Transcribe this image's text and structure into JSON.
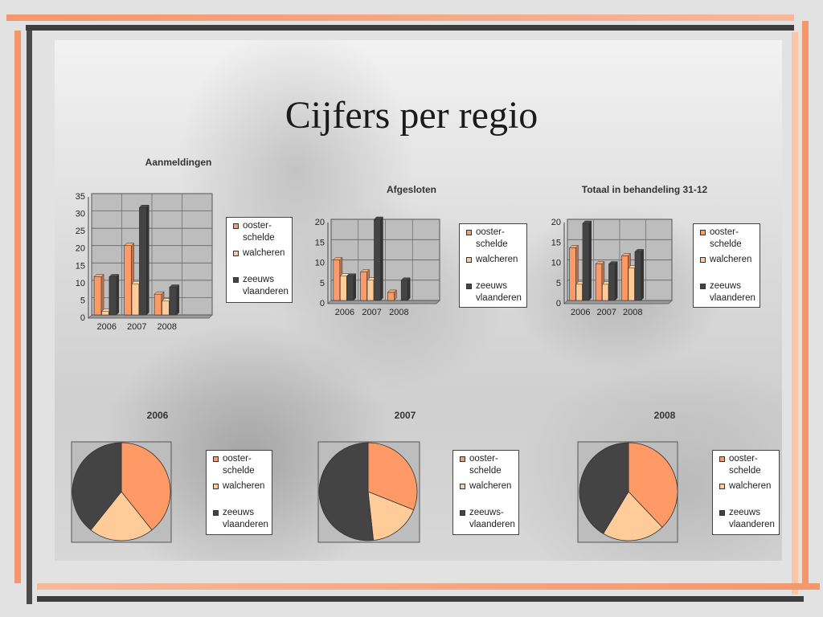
{
  "slide_title": "Cijfers per regio",
  "colors": {
    "oosterschelde": "#ff9966",
    "walcheren": "#ffcc99",
    "zeeuws_vlaanderen": "#444444",
    "plot_bg": "#bdbdbd",
    "accent_orange": "#f4976c"
  },
  "chart_data": [
    {
      "id": "aanmeldingen",
      "type": "bar",
      "title": "Aanmeldingen",
      "categories": [
        "2006",
        "2007",
        "2008"
      ],
      "ylim": [
        0,
        35
      ],
      "yticks": [
        "0",
        "5",
        "10",
        "15",
        "20",
        "25",
        "30",
        "35"
      ],
      "series": [
        {
          "name": "ooster-schelde",
          "values": [
            11,
            20,
            6
          ]
        },
        {
          "name": "walcheren",
          "values": [
            1,
            9,
            4
          ]
        },
        {
          "name": "zeeuws vlaanderen",
          "values": [
            11,
            31,
            8
          ]
        }
      ],
      "legend": [
        "ooster-",
        "schelde",
        "walcheren",
        "zeeuws",
        "vlaanderen"
      ]
    },
    {
      "id": "afgesloten",
      "type": "bar",
      "title": "Afgesloten",
      "categories": [
        "2006",
        "2007",
        "2008"
      ],
      "ylim": [
        0,
        20
      ],
      "yticks": [
        "0",
        "5",
        "10",
        "15",
        "20"
      ],
      "series": [
        {
          "name": "ooster-schelde",
          "values": [
            10,
            7,
            2
          ]
        },
        {
          "name": "walcheren",
          "values": [
            6,
            5,
            0
          ]
        },
        {
          "name": "zeeuws vlaanderen",
          "values": [
            6,
            20,
            5
          ]
        }
      ],
      "legend": [
        "ooster-",
        "schelde",
        "walcheren",
        "zeeuws",
        "vlaanderen"
      ]
    },
    {
      "id": "totaal",
      "type": "bar",
      "title": "Totaal in behandeling 31-12",
      "categories": [
        "2006",
        "2007",
        "2008"
      ],
      "ylim": [
        0,
        20
      ],
      "yticks": [
        "0",
        "5",
        "10",
        "15",
        "20"
      ],
      "series": [
        {
          "name": "ooster-schelde",
          "values": [
            13,
            9,
            11
          ]
        },
        {
          "name": "walcheren",
          "values": [
            4,
            4,
            8
          ]
        },
        {
          "name": "zeeuws vlaanderen",
          "values": [
            19,
            9,
            12
          ]
        }
      ],
      "legend": [
        "ooster-",
        "schelde",
        "walcheren",
        "zeeuws",
        "vlaanderen"
      ]
    },
    {
      "id": "pie2006",
      "type": "pie",
      "title": "2006",
      "labels": [
        "ooster-schelde",
        "walcheren",
        "zeeuws vlaanderen"
      ],
      "values": [
        11,
        6,
        11
      ],
      "legend": [
        "ooster-",
        "schelde",
        "walcheren",
        "zeeuws",
        "vlaanderen"
      ]
    },
    {
      "id": "pie2007",
      "type": "pie",
      "title": "2007",
      "labels": [
        "ooster-schelde",
        "walcheren",
        "zeeuws-vlaanderen"
      ],
      "values": [
        9,
        5,
        15
      ],
      "legend": [
        "ooster-",
        "schelde",
        "walcheren",
        "zeeuws-",
        "vlaanderen"
      ]
    },
    {
      "id": "pie2008",
      "type": "pie",
      "title": "2008",
      "labels": [
        "ooster-schelde",
        "walcheren",
        "zeeuws vlaanderen"
      ],
      "values": [
        11,
        6,
        12
      ],
      "legend": [
        "ooster-",
        "schelde",
        "walcheren",
        "zeeuws",
        "vlaanderen"
      ]
    }
  ]
}
